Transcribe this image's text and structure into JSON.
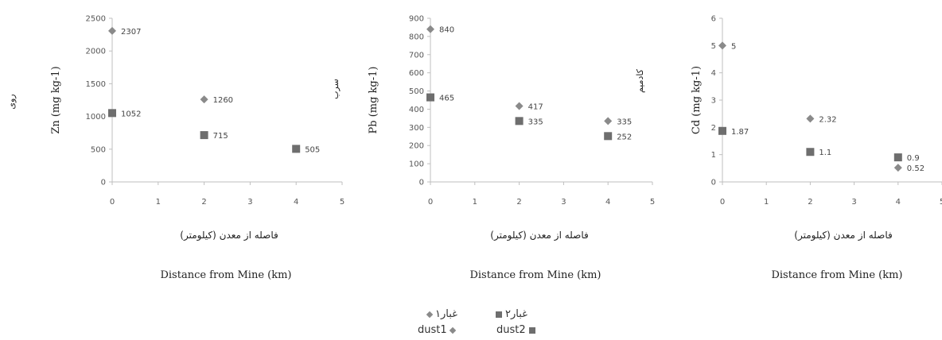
{
  "colors": {
    "dust1": "#8a8a8a",
    "dust2": "#6e6e6e",
    "axis": "#bfbfbf"
  },
  "chart_data": [
    {
      "type": "scatter",
      "ylabel": "Zn (mg kg-1)",
      "ylabel_fa": "روی",
      "xlabel_fa": "فاصله از معدن (کیلومتر)",
      "xlabel": "Distance from Mine (km)",
      "xlim": [
        0,
        5
      ],
      "ylim": [
        0,
        2500
      ],
      "xticks": [
        "0",
        "1",
        "2",
        "3",
        "4",
        "5"
      ],
      "yticks": [
        "0",
        "500",
        "1000",
        "1500",
        "2000",
        "2500"
      ],
      "series": [
        {
          "name": "dust1",
          "marker": "diamond",
          "x": [
            0,
            2,
            4
          ],
          "y": [
            2307,
            1260,
            505
          ],
          "labels": [
            "2307",
            "1260",
            ""
          ]
        },
        {
          "name": "dust2",
          "marker": "square",
          "x": [
            0,
            2,
            4
          ],
          "y": [
            1052,
            715,
            505
          ],
          "labels": [
            "1052",
            "715",
            "505"
          ]
        }
      ]
    },
    {
      "type": "scatter",
      "ylabel": "Pb (mg kg-1)",
      "ylabel_fa": "سرب",
      "xlabel_fa": "فاصله از معدن (کیلومتر)",
      "xlabel": "Distance from Mine (km)",
      "xlim": [
        0,
        5
      ],
      "ylim": [
        0,
        900
      ],
      "xticks": [
        "0",
        "1",
        "2",
        "3",
        "4",
        "5"
      ],
      "yticks": [
        "0",
        "100",
        "200",
        "300",
        "400",
        "500",
        "600",
        "700",
        "800",
        "900"
      ],
      "series": [
        {
          "name": "dust1",
          "marker": "diamond",
          "x": [
            0,
            2,
            4
          ],
          "y": [
            840,
            417,
            335
          ],
          "labels": [
            "840",
            "417",
            "335"
          ]
        },
        {
          "name": "dust2",
          "marker": "square",
          "x": [
            0,
            2,
            4
          ],
          "y": [
            465,
            335,
            252
          ],
          "labels": [
            "465",
            "335",
            "252"
          ]
        }
      ]
    },
    {
      "type": "scatter",
      "ylabel": "Cd (mg kg-1)",
      "ylabel_fa": "کادمیم",
      "xlabel_fa": "فاصله از معدن (کیلومتر)",
      "xlabel": "Distance from Mine (km)",
      "xlim": [
        0,
        5
      ],
      "ylim": [
        0,
        6
      ],
      "xticks": [
        "0",
        "1",
        "2",
        "3",
        "4",
        "5"
      ],
      "yticks": [
        "0",
        "1",
        "2",
        "3",
        "4",
        "5",
        "6"
      ],
      "series": [
        {
          "name": "dust1",
          "marker": "diamond",
          "x": [
            0,
            2,
            4
          ],
          "y": [
            5,
            2.32,
            0.52
          ],
          "labels": [
            "5",
            "2.32",
            "0.52"
          ]
        },
        {
          "name": "dust2",
          "marker": "square",
          "x": [
            0,
            2,
            4
          ],
          "y": [
            1.87,
            1.1,
            0.9
          ],
          "labels": [
            "1.87",
            "1.1",
            "0.9"
          ]
        }
      ]
    }
  ],
  "legend": {
    "dust1_fa": "غبار۱",
    "dust2_fa": "غبار۲",
    "dust1_en": "dust1",
    "dust2_en": "dust2"
  }
}
